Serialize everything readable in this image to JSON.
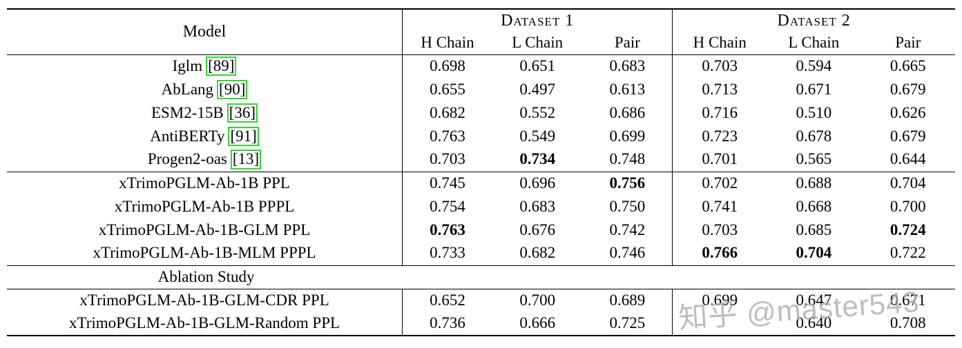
{
  "colors": {
    "cite_green": "#2fd62f",
    "watermark_gray": "#acacac",
    "text": "#000000",
    "background": "#ffffff"
  },
  "watermark": {
    "text": "知乎 @master543"
  },
  "table": {
    "header": {
      "model": "Model",
      "group1": "Dataset 1",
      "group2": "Dataset 2",
      "subheaders": [
        "H Chain",
        "L Chain",
        "Pair"
      ]
    },
    "sections": [
      {
        "name": "baselines",
        "rows": [
          {
            "model": "Iglm",
            "cite": "89",
            "values": [
              "0.698",
              "0.651",
              "0.683",
              "0.703",
              "0.594",
              "0.665"
            ],
            "bold": []
          },
          {
            "model": "AbLang",
            "cite": "90",
            "values": [
              "0.655",
              "0.497",
              "0.613",
              "0.713",
              "0.671",
              "0.679"
            ],
            "bold": []
          },
          {
            "model": "ESM2-15B",
            "cite": "36",
            "values": [
              "0.682",
              "0.552",
              "0.686",
              "0.716",
              "0.510",
              "0.626"
            ],
            "bold": []
          },
          {
            "model": "AntiBERTy",
            "cite": "91",
            "values": [
              "0.763",
              "0.549",
              "0.699",
              "0.723",
              "0.678",
              "0.679"
            ],
            "bold": []
          },
          {
            "model": "Progen2-oas",
            "cite": "13",
            "values": [
              "0.703",
              "0.734",
              "0.748",
              "0.701",
              "0.565",
              "0.644"
            ],
            "bold": [
              1
            ]
          }
        ]
      },
      {
        "name": "xtrimo-variants",
        "rows": [
          {
            "model": "xTrimoPGLM-Ab-1B PPL",
            "values": [
              "0.745",
              "0.696",
              "0.756",
              "0.702",
              "0.688",
              "0.704"
            ],
            "bold": [
              2
            ]
          },
          {
            "model": "xTrimoPGLM-Ab-1B PPPL",
            "values": [
              "0.754",
              "0.683",
              "0.750",
              "0.741",
              "0.668",
              "0.700"
            ],
            "bold": []
          },
          {
            "model": "xTrimoPGLM-Ab-1B-GLM PPL",
            "values": [
              "0.763",
              "0.676",
              "0.742",
              "0.703",
              "0.685",
              "0.724"
            ],
            "bold": [
              0,
              5
            ]
          },
          {
            "model": "xTrimoPGLM-Ab-1B-MLM PPPL",
            "values": [
              "0.733",
              "0.682",
              "0.746",
              "0.766",
              "0.704",
              "0.722"
            ],
            "bold": [
              3,
              4
            ]
          }
        ]
      },
      {
        "name": "ablation-label",
        "rows": [
          {
            "type": "label",
            "model": "Ablation Study",
            "values": [],
            "bold": []
          }
        ]
      },
      {
        "name": "ablation",
        "rows": [
          {
            "model": "xTrimoPGLM-Ab-1B-GLM-CDR PPL",
            "values": [
              "0.652",
              "0.700",
              "0.689",
              "0.699",
              "0.647",
              "0.671"
            ],
            "bold": []
          },
          {
            "model": "xTrimoPGLM-Ab-1B-GLM-Random PPL",
            "values": [
              "0.736",
              "0.666",
              "0.725",
              "",
              "0.640",
              "0.708"
            ],
            "bold": []
          }
        ]
      }
    ]
  }
}
